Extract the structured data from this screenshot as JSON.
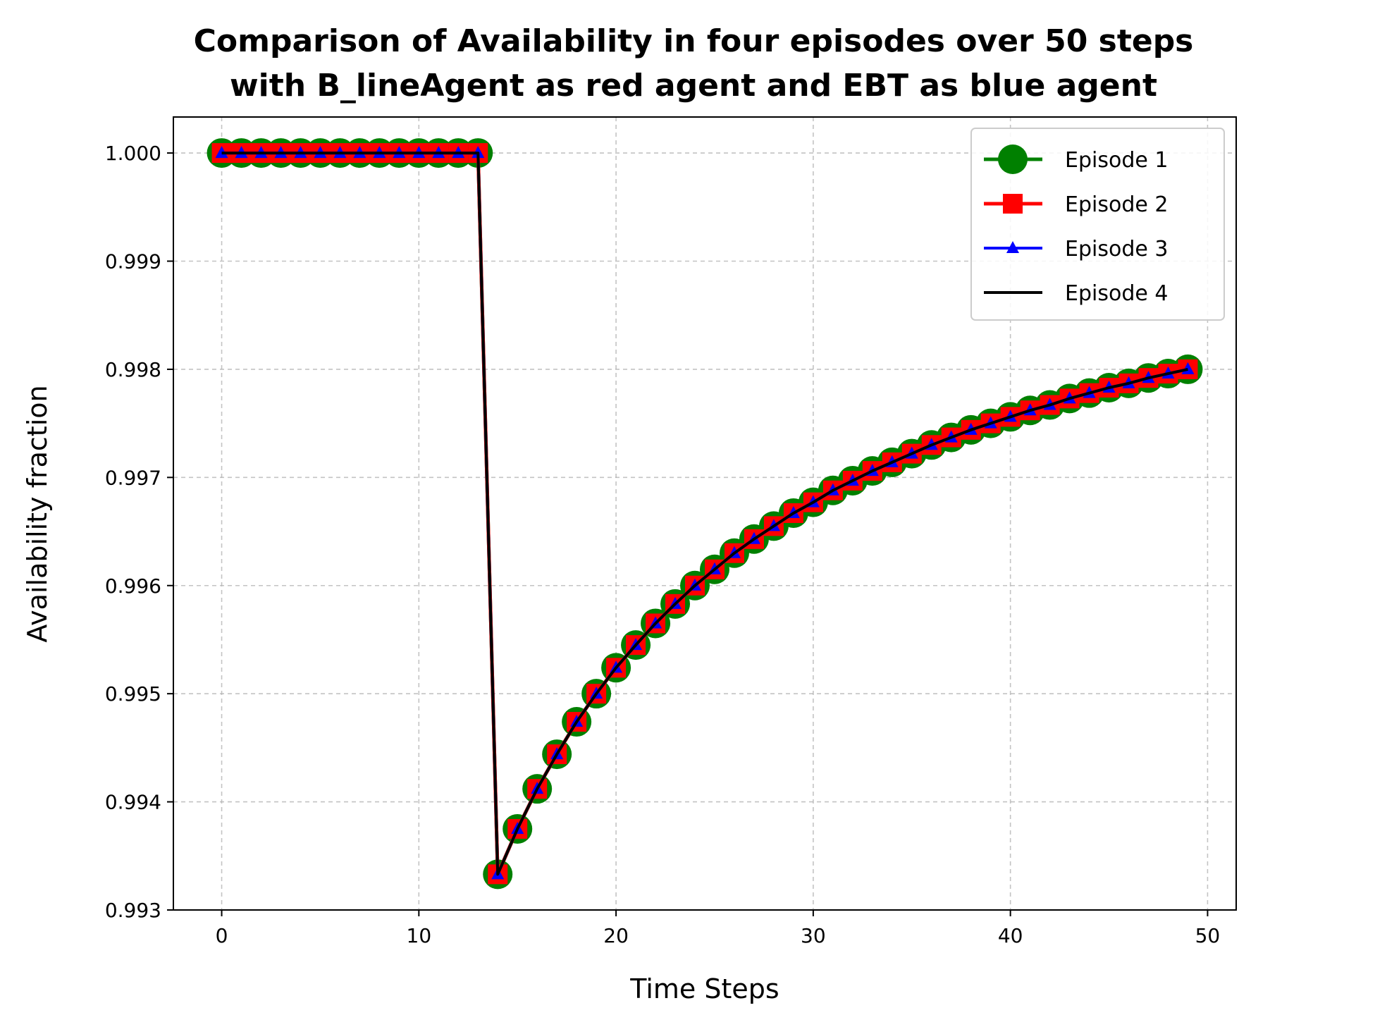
{
  "chart_data": {
    "type": "line",
    "title": [
      "Comparison of Availability in four episodes over 50 steps",
      "with B_lineAgent as red agent and EBT as blue agent"
    ],
    "xlabel": "Time Steps",
    "ylabel": "Availability fraction",
    "xlim": [
      -2.45,
      51.45
    ],
    "ylim": [
      0.993,
      1.000333
    ],
    "xticks": [
      0,
      10,
      20,
      30,
      40,
      50
    ],
    "yticks": [
      0.993,
      0.994,
      0.995,
      0.996,
      0.997,
      0.998,
      0.999,
      1.0
    ],
    "ytick_labels": [
      "0.993",
      "0.994",
      "0.995",
      "0.996",
      "0.997",
      "0.998",
      "0.999",
      "1.000"
    ],
    "grid": true,
    "legend_position": "upper-right",
    "x": [
      0,
      1,
      2,
      3,
      4,
      5,
      6,
      7,
      8,
      9,
      10,
      11,
      12,
      13,
      14,
      15,
      16,
      17,
      18,
      19,
      20,
      21,
      22,
      23,
      24,
      25,
      26,
      27,
      28,
      29,
      30,
      31,
      32,
      33,
      34,
      35,
      36,
      37,
      38,
      39,
      40,
      41,
      42,
      43,
      44,
      45,
      46,
      47,
      48,
      49
    ],
    "series": [
      {
        "name": "Episode 1",
        "color": "#008000",
        "marker": "circle",
        "values": [
          1.0,
          1.0,
          1.0,
          1.0,
          1.0,
          1.0,
          1.0,
          1.0,
          1.0,
          1.0,
          1.0,
          1.0,
          1.0,
          1.0,
          0.99333,
          0.99375,
          0.99412,
          0.99444,
          0.99474,
          0.995,
          0.99524,
          0.99545,
          0.99565,
          0.99583,
          0.996,
          0.99615,
          0.9963,
          0.99643,
          0.99655,
          0.99667,
          0.99677,
          0.99688,
          0.99697,
          0.99706,
          0.99714,
          0.99722,
          0.9973,
          0.99737,
          0.99744,
          0.9975,
          0.99756,
          0.99762,
          0.99767,
          0.99773,
          0.99778,
          0.99783,
          0.99787,
          0.99792,
          0.99796,
          0.998
        ]
      },
      {
        "name": "Episode 2",
        "color": "#ff0000",
        "marker": "square",
        "values": [
          1.0,
          1.0,
          1.0,
          1.0,
          1.0,
          1.0,
          1.0,
          1.0,
          1.0,
          1.0,
          1.0,
          1.0,
          1.0,
          1.0,
          0.99333,
          0.99375,
          0.99412,
          0.99444,
          0.99474,
          0.995,
          0.99524,
          0.99545,
          0.99565,
          0.99583,
          0.996,
          0.99615,
          0.9963,
          0.99643,
          0.99655,
          0.99667,
          0.99677,
          0.99688,
          0.99697,
          0.99706,
          0.99714,
          0.99722,
          0.9973,
          0.99737,
          0.99744,
          0.9975,
          0.99756,
          0.99762,
          0.99767,
          0.99773,
          0.99778,
          0.99783,
          0.99787,
          0.99792,
          0.99796,
          0.998
        ]
      },
      {
        "name": "Episode 3",
        "color": "#0000ff",
        "marker": "triangle",
        "values": [
          1.0,
          1.0,
          1.0,
          1.0,
          1.0,
          1.0,
          1.0,
          1.0,
          1.0,
          1.0,
          1.0,
          1.0,
          1.0,
          1.0,
          0.99333,
          0.99375,
          0.99412,
          0.99444,
          0.99474,
          0.995,
          0.99524,
          0.99545,
          0.99565,
          0.99583,
          0.996,
          0.99615,
          0.9963,
          0.99643,
          0.99655,
          0.99667,
          0.99677,
          0.99688,
          0.99697,
          0.99706,
          0.99714,
          0.99722,
          0.9973,
          0.99737,
          0.99744,
          0.9975,
          0.99756,
          0.99762,
          0.99767,
          0.99773,
          0.99778,
          0.99783,
          0.99787,
          0.99792,
          0.99796,
          0.998
        ]
      },
      {
        "name": "Episode 4",
        "color": "#000000",
        "marker": "none",
        "values": [
          1.0,
          1.0,
          1.0,
          1.0,
          1.0,
          1.0,
          1.0,
          1.0,
          1.0,
          1.0,
          1.0,
          1.0,
          1.0,
          1.0,
          0.99333,
          0.99375,
          0.99412,
          0.99444,
          0.99474,
          0.995,
          0.99524,
          0.99545,
          0.99565,
          0.99583,
          0.996,
          0.99615,
          0.9963,
          0.99643,
          0.99655,
          0.99667,
          0.99677,
          0.99688,
          0.99697,
          0.99706,
          0.99714,
          0.99722,
          0.9973,
          0.99737,
          0.99744,
          0.9975,
          0.99756,
          0.99762,
          0.99767,
          0.99773,
          0.99778,
          0.99783,
          0.99787,
          0.99792,
          0.99796,
          0.998
        ]
      }
    ]
  }
}
